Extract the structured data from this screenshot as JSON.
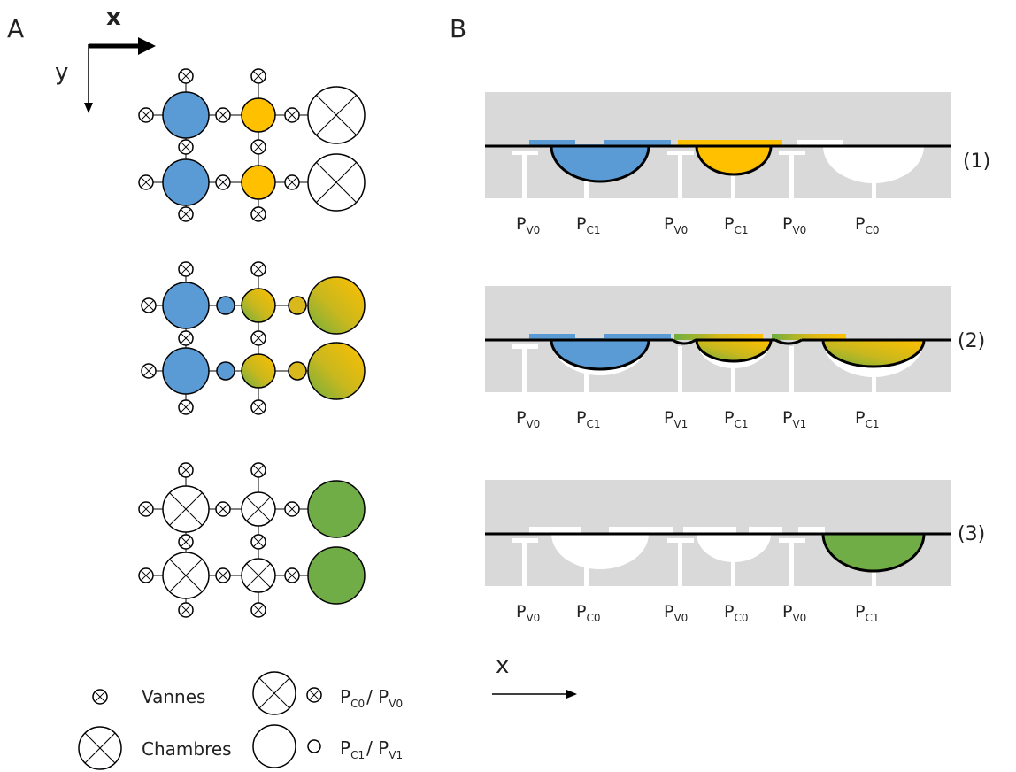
{
  "panel_a_label": "A",
  "panel_b_label": "B",
  "axis_x": "x",
  "axis_y": "y",
  "legend": {
    "valves_label": "Vannes",
    "chambers_label": "Chambres",
    "closed_label": "P",
    "closed_sub1": "C0",
    "closed_sep": "/ P",
    "closed_sub2": "V0",
    "open_label": "P",
    "open_sub1": "C1",
    "open_sep": "/ P",
    "open_sub2": "V1"
  },
  "colors": {
    "blue": "#5b9bd5",
    "yellow": "#ffc000",
    "green": "#70ad47",
    "substrate": "#d9d9d9",
    "outline": "#000000"
  },
  "steps": [
    {
      "label": "(1)",
      "pressures": [
        {
          "main": "P",
          "sub": "V0"
        },
        {
          "main": "P",
          "sub": "C1"
        },
        {
          "main": "P",
          "sub": "V0"
        },
        {
          "main": "P",
          "sub": "C1"
        },
        {
          "main": "P",
          "sub": "V0"
        },
        {
          "main": "P",
          "sub": "C0"
        }
      ]
    },
    {
      "label": "(2)",
      "pressures": [
        {
          "main": "P",
          "sub": "V0"
        },
        {
          "main": "P",
          "sub": "C1"
        },
        {
          "main": "P",
          "sub": "V1"
        },
        {
          "main": "P",
          "sub": "C1"
        },
        {
          "main": "P",
          "sub": "V1"
        },
        {
          "main": "P",
          "sub": "C1"
        }
      ]
    },
    {
      "label": "(3)",
      "pressures": [
        {
          "main": "P",
          "sub": "V0"
        },
        {
          "main": "P",
          "sub": "C0"
        },
        {
          "main": "P",
          "sub": "V0"
        },
        {
          "main": "P",
          "sub": "C0"
        },
        {
          "main": "P",
          "sub": "V0"
        },
        {
          "main": "P",
          "sub": "C1"
        }
      ]
    }
  ],
  "panel_b_axis": "x"
}
